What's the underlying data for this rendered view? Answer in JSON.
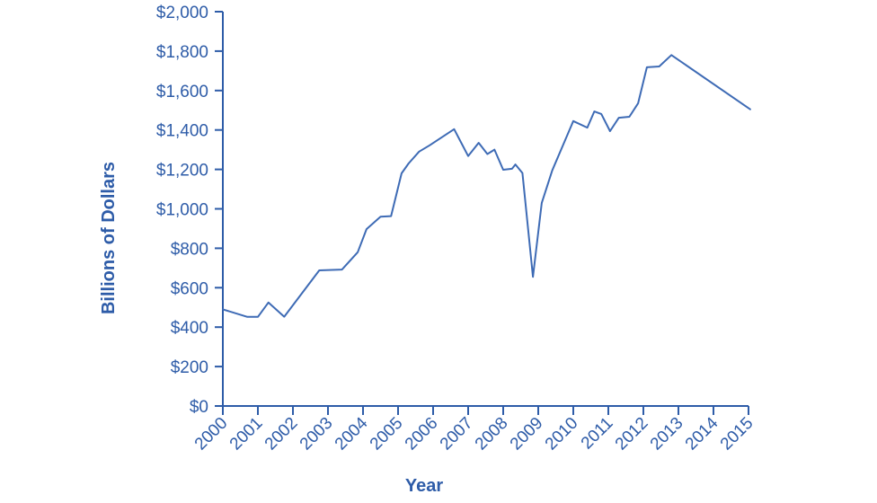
{
  "figure": {
    "background_color": "#ffffff"
  },
  "chart_data": {
    "type": "line",
    "title": "",
    "xlabel": "Year",
    "ylabel": "Billions of Dollars",
    "xlim": [
      2000,
      2015
    ],
    "ylim": [
      0,
      2000
    ],
    "grid": false,
    "legend": null,
    "axis_color": "#2e5ca8",
    "line_color": "#3e6bb5",
    "x_ticks": {
      "values": [
        2000,
        2001,
        2002,
        2003,
        2004,
        2005,
        2006,
        2007,
        2008,
        2009,
        2010,
        2011,
        2012,
        2013,
        2014,
        2015
      ],
      "labels": [
        "2000",
        "2001",
        "2002",
        "2003",
        "2004",
        "2005",
        "2006",
        "2007",
        "2008",
        "2009",
        "2010",
        "2011",
        "2012",
        "2013",
        "2014",
        "2015"
      ]
    },
    "y_ticks": {
      "values": [
        0,
        200,
        400,
        600,
        800,
        1000,
        1200,
        1400,
        1600,
        1800,
        2000
      ],
      "labels": [
        "$0",
        "$200",
        "$400",
        "$600",
        "$800",
        "$1,000",
        "$1,200",
        "$1,400",
        "$1,600",
        "$1,800",
        "$2,000"
      ]
    },
    "series": [
      {
        "name": "billions-of-dollars",
        "x": [
          2000.0,
          2000.7,
          2001.0,
          2001.3,
          2001.75,
          2002.75,
          2003.4,
          2003.85,
          2004.1,
          2004.5,
          2004.8,
          2005.1,
          2005.3,
          2005.6,
          2005.9,
          2006.6,
          2007.0,
          2007.3,
          2007.55,
          2007.75,
          2008.0,
          2008.25,
          2008.35,
          2008.55,
          2008.85,
          2009.1,
          2009.4,
          2010.0,
          2010.4,
          2010.6,
          2010.8,
          2011.05,
          2011.3,
          2011.6,
          2011.85,
          2012.1,
          2012.45,
          2012.8,
          2015.05
        ],
        "values": [
          490,
          452,
          452,
          525,
          453,
          688,
          692,
          780,
          897,
          960,
          963,
          1180,
          1230,
          1290,
          1322,
          1404,
          1268,
          1335,
          1278,
          1300,
          1198,
          1203,
          1225,
          1182,
          655,
          1030,
          1195,
          1445,
          1412,
          1494,
          1481,
          1394,
          1462,
          1467,
          1535,
          1718,
          1722,
          1780,
          1505
        ]
      }
    ]
  }
}
